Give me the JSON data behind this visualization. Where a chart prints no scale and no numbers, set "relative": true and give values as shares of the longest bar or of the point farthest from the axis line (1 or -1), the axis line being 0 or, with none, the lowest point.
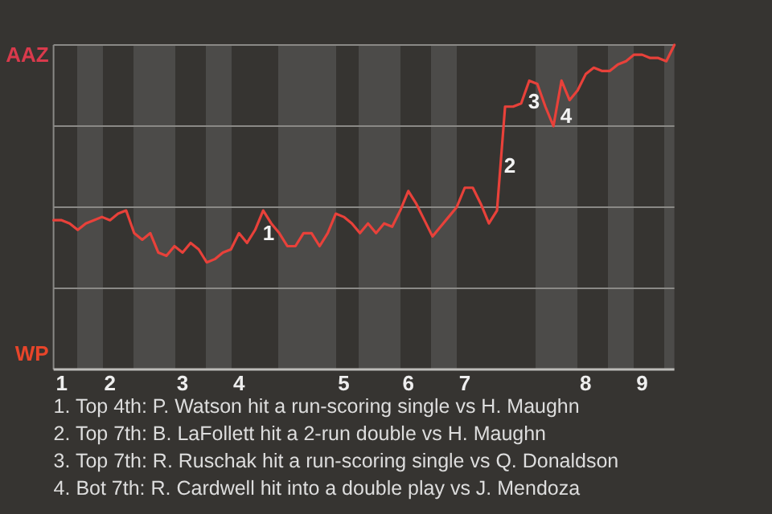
{
  "chart_data": {
    "type": "line",
    "relative": true,
    "categories": [
      null,
      "1",
      null,
      null,
      null,
      null,
      null,
      "2",
      null,
      null,
      null,
      null,
      null,
      null,
      null,
      null,
      "3",
      null,
      null,
      null,
      null,
      null,
      null,
      "4",
      null,
      null,
      null,
      null,
      null,
      null,
      null,
      null,
      null,
      null,
      null,
      null,
      "5",
      null,
      null,
      null,
      null,
      null,
      null,
      null,
      "6",
      null,
      null,
      null,
      null,
      null,
      null,
      "7",
      null,
      null,
      null,
      null,
      null,
      null,
      null,
      null,
      null,
      null,
      null,
      null,
      null,
      null,
      "8",
      null,
      null,
      null,
      null,
      null,
      null,
      "9",
      null,
      null,
      null,
      null
    ],
    "series": [
      {
        "color": "#e8413a",
        "values": [
          0.46,
          0.46,
          0.45,
          0.43,
          0.45,
          0.46,
          0.47,
          0.46,
          0.48,
          0.49,
          0.42,
          0.4,
          0.42,
          0.36,
          0.35,
          0.38,
          0.36,
          0.39,
          0.37,
          0.33,
          0.34,
          0.36,
          0.37,
          0.42,
          0.39,
          0.43,
          0.49,
          0.45,
          0.42,
          0.38,
          0.38,
          0.42,
          0.42,
          0.38,
          0.42,
          0.48,
          0.47,
          0.45,
          0.42,
          0.45,
          0.42,
          0.45,
          0.44,
          0.49,
          0.55,
          0.51,
          0.46,
          0.41,
          0.44,
          0.47,
          0.5,
          0.56,
          0.56,
          0.51,
          0.45,
          0.49,
          0.81,
          0.81,
          0.82,
          0.89,
          0.88,
          0.81,
          0.75,
          0.89,
          0.83,
          0.86,
          0.91,
          0.93,
          0.92,
          0.92,
          0.94,
          0.95,
          0.97,
          0.97,
          0.96,
          0.96,
          0.95,
          1
        ]
      }
    ],
    "grid": "y",
    "marker": "none",
    "line_style": "solid",
    "annotations": [
      "1",
      "2",
      "3",
      "4",
      "AAZ",
      "WP",
      "1. Top 4th: P. Watson hit a run-scoring single vs H. Maughn",
      "2. Top 7th: B. LaFollett hit a 2-run double vs H. Maughn",
      "3. Top 7th: R. Ruschak hit a run-scoring single vs Q. Donaldson",
      "4. Bot 7th: R. Cardwell hit into a double play vs J. Mendoza"
    ]
  }
}
